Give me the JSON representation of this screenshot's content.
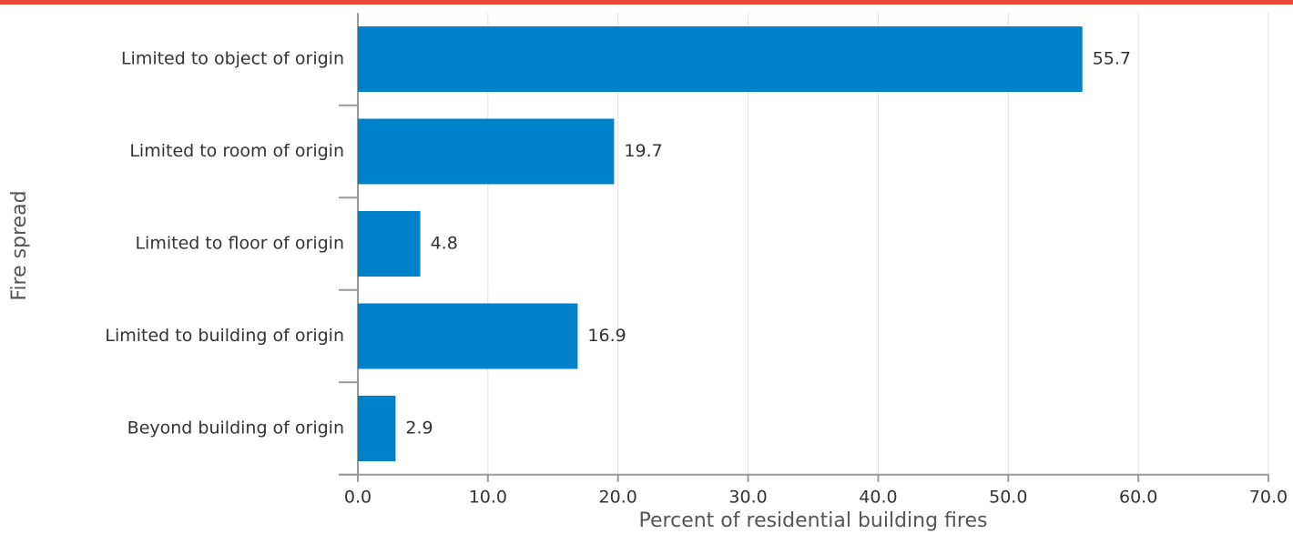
{
  "chart_data": {
    "type": "bar",
    "orientation": "horizontal",
    "x_label": "Percent of residential building fires",
    "y_label": "Fire spread",
    "categories": [
      "Limited to object of origin",
      "Limited to room of origin",
      "Limited to floor of origin",
      "Limited to building of origin",
      "Beyond building of origin"
    ],
    "values": [
      55.7,
      19.7,
      4.8,
      16.9,
      2.9
    ],
    "color": "#0082ca",
    "xlim": [
      0,
      70
    ],
    "xticks": [
      {
        "value": 0,
        "label": "0.0"
      },
      {
        "value": 10,
        "label": "10.0"
      },
      {
        "value": 20,
        "label": "20.0"
      },
      {
        "value": 30,
        "label": "30.0"
      },
      {
        "value": 40,
        "label": "40.0"
      },
      {
        "value": 50,
        "label": "50.0"
      },
      {
        "value": 60,
        "label": "60.0"
      },
      {
        "value": 70,
        "label": "70.0"
      }
    ],
    "grid": true
  }
}
